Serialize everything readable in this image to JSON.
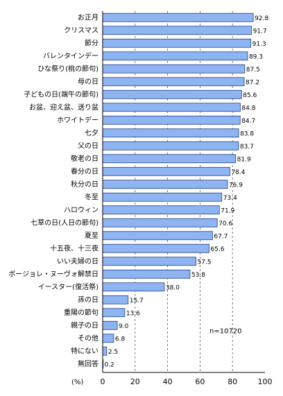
{
  "chart_data": {
    "type": "bar",
    "orientation": "horizontal",
    "categories": [
      "お正月",
      "クリスマス",
      "節分",
      "バレンタインデー",
      "ひな祭り(桃の節句)",
      "母の日",
      "子どもの日(端午の節句)",
      "お盆、迎え盆、送り盆",
      "ホワイトデー",
      "七夕",
      "父の日",
      "敬老の日",
      "春分の日",
      "秋分の日",
      "冬至",
      "ハロウィン",
      "七草の日(人日の節句)",
      "夏至",
      "十五夜、十三夜",
      "いい夫婦の日",
      "ボージョレ・ヌーヴォ解禁日",
      "イースター(復活祭)",
      "孫の日",
      "重陽の節句",
      "親子の日",
      "その他",
      "特にない",
      "無回答"
    ],
    "values": [
      92.8,
      91.7,
      91.3,
      89.3,
      87.5,
      87.2,
      85.6,
      84.8,
      84.7,
      83.8,
      83.7,
      81.9,
      78.4,
      76.9,
      73.4,
      71.9,
      70.6,
      67.7,
      65.6,
      57.5,
      53.8,
      38.0,
      15.7,
      13.6,
      9.0,
      6.8,
      2.5,
      0.2
    ],
    "value_labels": [
      "92.8",
      "91.7",
      "91.3",
      "89.3",
      "87.5",
      "87.2",
      "85.6",
      "84.8",
      "84.7",
      "83.8",
      "83.7",
      "81.9",
      "78.4",
      "76.9",
      "73.4",
      "71.9",
      "70.6",
      "67.7",
      "65.6",
      "57.5",
      "53.8",
      "38.0",
      "15.7",
      "13.6",
      "9.0",
      "6.8",
      "2.5",
      "0.2"
    ],
    "xlim": [
      0,
      100
    ],
    "xticks": [
      "0",
      "20",
      "40",
      "60",
      "80",
      "100"
    ],
    "unit_label": "(%)",
    "note": "n=10720",
    "grid": "vertical dashed",
    "colors": {
      "bar_fill": "#8fb4f2",
      "bar_edge": "#1f3d8a"
    }
  }
}
